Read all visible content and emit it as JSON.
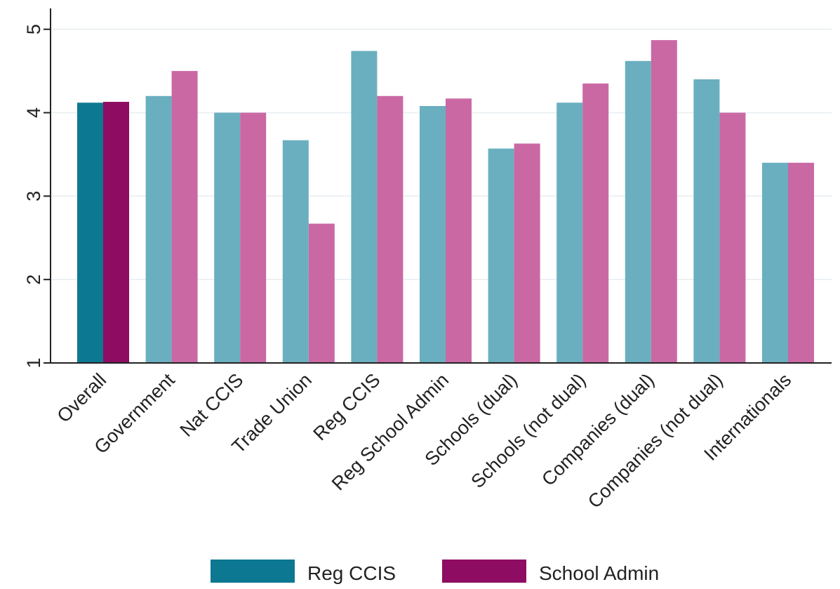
{
  "chart_data": {
    "type": "bar",
    "title": "",
    "xlabel": "",
    "ylabel": "",
    "ylim": [
      1,
      5.25
    ],
    "yticks": [
      1,
      2,
      3,
      4,
      5
    ],
    "grid": true,
    "legend_position": "bottom",
    "categories": [
      "Overall",
      "Government",
      "Nat CCIS",
      "Trade Union",
      "Reg CCIS",
      "Reg School Admin",
      "Schools (dual)",
      "Schools (not dual)",
      "Companies (dual)",
      "Companies (not dual)",
      "Internationals"
    ],
    "series": [
      {
        "name": "Reg CCIS",
        "color": "#0d7891",
        "light_color": "#6aafbf",
        "values": [
          4.12,
          4.2,
          4.0,
          3.67,
          4.74,
          4.08,
          3.57,
          4.12,
          4.62,
          4.4,
          3.4
        ]
      },
      {
        "name": "School Admin",
        "color": "#8e0c62",
        "light_color": "#ca68a4",
        "values": [
          4.13,
          4.5,
          4.0,
          2.67,
          4.2,
          4.17,
          3.63,
          4.35,
          4.87,
          4.0,
          3.4
        ]
      }
    ],
    "highlighted_category": "Overall"
  }
}
